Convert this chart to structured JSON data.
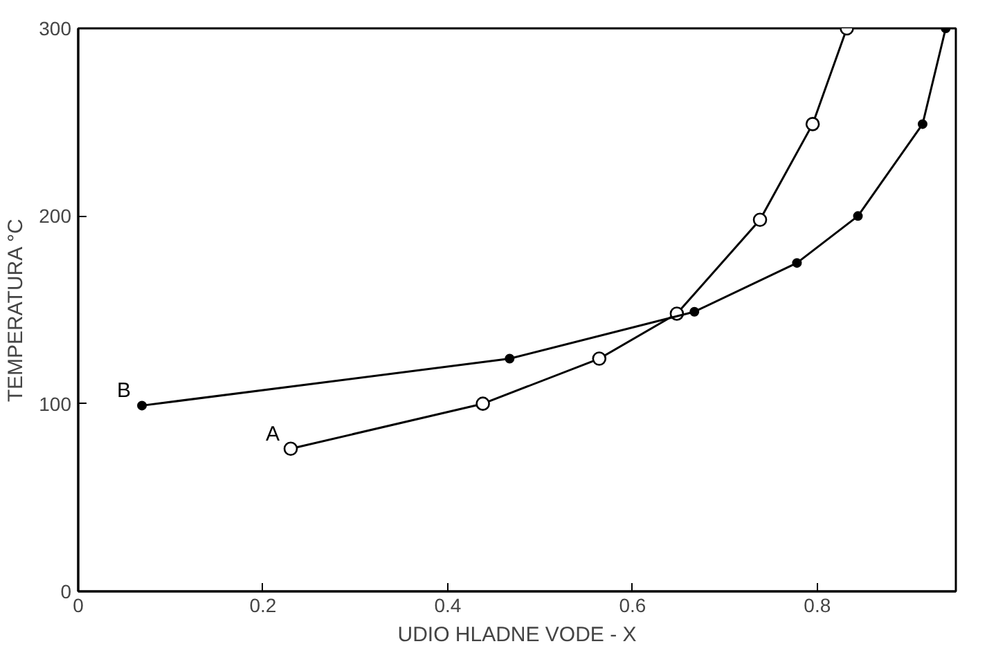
{
  "chart_data": {
    "type": "line",
    "xlabel": "UDIO HLADNE VODE - X",
    "ylabel": "TEMPERATURA °C",
    "xlim": [
      0,
      0.95
    ],
    "ylim": [
      0,
      300
    ],
    "xticks": [
      0,
      0.2,
      0.4,
      0.6,
      0.8
    ],
    "yticks": [
      0,
      100,
      200,
      300
    ],
    "grid": false,
    "series": [
      {
        "name": "A",
        "color": "#000000",
        "marker": "open_circle",
        "x": [
          0.23,
          0.438,
          0.564,
          0.648,
          0.738,
          0.795,
          0.832
        ],
        "values": [
          76,
          100,
          124,
          148,
          198,
          249,
          300
        ]
      },
      {
        "name": "B",
        "color": "#000000",
        "marker": "circle",
        "x": [
          0.069,
          0.467,
          0.667,
          0.778,
          0.844,
          0.914,
          0.939
        ],
        "values": [
          99,
          124,
          149,
          175,
          200,
          249,
          300
        ]
      }
    ]
  }
}
